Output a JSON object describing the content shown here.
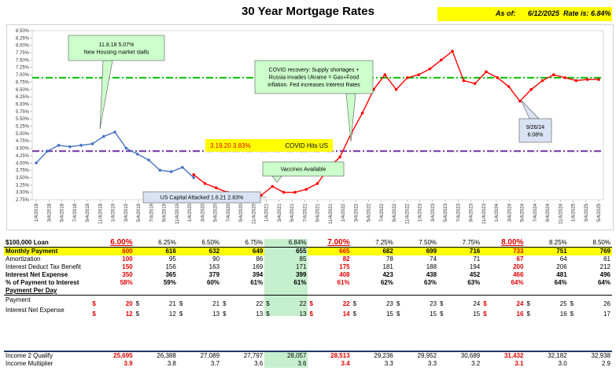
{
  "title": "30 Year Mortgage Rates",
  "asof": {
    "label": "As of:",
    "date": "6/12/2025",
    "rate_label": "Rate is: 6.84%"
  },
  "colors": {
    "blue": "#4472c4",
    "red": "#ff0000",
    "green_line": "#00c000",
    "purple_line": "#7030a0",
    "callout_green": "#ccffcc",
    "callout_blue": "#dae3f3",
    "yellow": "#ffff00",
    "highlight": "#c6efce"
  },
  "chart_data": {
    "type": "line",
    "ylim": [
      2.75,
      8.5
    ],
    "yticks": [
      "8.50%",
      "8.25%",
      "8.00%",
      "7.75%",
      "7.50%",
      "7.25%",
      "7.00%",
      "6.75%",
      "6.50%",
      "6.25%",
      "6.00%",
      "5.75%",
      "5.50%",
      "5.25%",
      "5.00%",
      "4.75%",
      "4.50%",
      "4.25%",
      "4.00%",
      "3.75%",
      "3.50%",
      "3.25%",
      "3.00%",
      "2.75%"
    ],
    "xticks": [
      "1/4/2018",
      "3/4/2018",
      "5/4/2018",
      "7/4/2018",
      "9/4/2018",
      "11/4/2018",
      "1/4/2019",
      "3/4/2019",
      "5/4/2019",
      "7/4/2019",
      "9/4/2019",
      "11/4/2019",
      "1/4/2020",
      "3/4/2020",
      "5/4/2020",
      "7/4/2020",
      "9/4/2020",
      "11/4/2020",
      "1/4/2021",
      "3/4/2021",
      "5/4/2021",
      "7/4/2021",
      "9/4/2021",
      "11/4/2021",
      "1/4/2022",
      "3/4/2022",
      "5/4/2022",
      "7/4/2022",
      "9/4/2022",
      "11/4/2022",
      "1/4/2023",
      "3/4/2023",
      "5/4/2023",
      "7/4/2023",
      "9/4/2023",
      "11/4/2023",
      "1/4/2024",
      "3/4/2024",
      "5/4/2024",
      "7/4/2024",
      "9/4/2024",
      "11/4/2024",
      "1/4/2025",
      "3/4/2025",
      "5/4/2025"
    ],
    "reference_lines": [
      {
        "value": 6.9,
        "color": "#00c000"
      },
      {
        "value": 4.4,
        "color": "#7030a0"
      }
    ],
    "series": [
      {
        "color": "#4472c4",
        "x": [
          0,
          1,
          2,
          3,
          4,
          5,
          6,
          7,
          8,
          9,
          10,
          11,
          12,
          13,
          14
        ],
        "values": [
          4.0,
          4.4,
          4.6,
          4.55,
          4.6,
          4.65,
          4.9,
          5.05,
          4.5,
          4.3,
          4.1,
          3.75,
          3.7,
          3.85,
          3.5
        ]
      },
      {
        "color": "#ff0000",
        "x": [
          14,
          15,
          16,
          17,
          18,
          19,
          20,
          21,
          22,
          23,
          24,
          25,
          26,
          27,
          28,
          29,
          30,
          31,
          32,
          33,
          34,
          35,
          36,
          37,
          38,
          39,
          40,
          41,
          42,
          43,
          44,
          45,
          46,
          47,
          48,
          49,
          50
        ],
        "values": [
          3.6,
          3.3,
          3.15,
          3.0,
          2.9,
          2.83,
          2.9,
          3.2,
          3.0,
          3.0,
          3.1,
          3.3,
          3.83,
          4.2,
          5.0,
          5.7,
          6.5,
          7.0,
          6.5,
          6.9,
          7.0,
          7.2,
          7.5,
          7.8,
          6.8,
          6.7,
          7.1,
          6.9,
          6.6,
          6.1,
          6.5,
          6.8,
          7.0,
          6.9,
          6.8,
          6.84,
          6.84
        ]
      }
    ],
    "annotations": [
      {
        "text_lines": [
          "11.8.18 5.07%",
          "New Housing market stalls"
        ],
        "style": "green"
      },
      {
        "text_lines": [
          "COVID recovery: Supply shortages +",
          "Russia invades Ukraine = Gas+Food",
          "inflation.  Fed increases Interest Rates"
        ],
        "style": "green"
      },
      {
        "text_lines": [
          "9/26/24",
          "6.08%"
        ],
        "style": "blue"
      },
      {
        "text_lines": [
          "US Capital Attacked 1.6.21 2.83%"
        ],
        "style": "blue"
      },
      {
        "text_lines": [
          "Vaccines Available"
        ],
        "style": "green"
      },
      {
        "text_lines": [
          "3.19.20  3.83%",
          "COVID Hits US"
        ],
        "style": "yellow"
      }
    ]
  },
  "table": {
    "loan_label": "$100,000 Loan",
    "rates": [
      "6.00%",
      "6.25%",
      "6.50%",
      "6.75%",
      "6.84%",
      "7.00%",
      "7.25%",
      "7.50%",
      "7.75%",
      "8.00%",
      "8.25%",
      "8.50%"
    ],
    "rows": [
      {
        "label": "Monthly Payment",
        "values": [
          "600",
          "616",
          "632",
          "649",
          "655",
          "665",
          "682",
          "699",
          "716",
          "733",
          "751",
          "769"
        ]
      },
      {
        "label": "Amortization",
        "values": [
          "100",
          "95",
          "90",
          "86",
          "85",
          "82",
          "78",
          "74",
          "71",
          "67",
          "64",
          "61"
        ]
      },
      {
        "label": "Interest Deduct Tax Benefit",
        "values": [
          "150",
          "156",
          "163",
          "169",
          "171",
          "175",
          "181",
          "188",
          "194",
          "200",
          "206",
          "212"
        ]
      },
      {
        "label": "Interest Net Expense",
        "values": [
          "350",
          "365",
          "379",
          "394",
          "399",
          "408",
          "423",
          "438",
          "452",
          "466",
          "481",
          "496"
        ]
      },
      {
        "label": "% of Payment to Interest",
        "values": [
          "58%",
          "59%",
          "60%",
          "61%",
          "61%",
          "61%",
          "62%",
          "63%",
          "63%",
          "64%",
          "64%",
          "64%"
        ]
      }
    ],
    "per_day_label": "Payment Per Day",
    "per_day_rows": [
      {
        "label": "Payment",
        "values": [
          "20",
          "21",
          "21",
          "22",
          "22",
          "22",
          "23",
          "23",
          "24",
          "24",
          "25",
          "26"
        ]
      },
      {
        "label": "Interest Net Expense",
        "values": [
          "12",
          "12",
          "13",
          "13",
          "13",
          "14",
          "15",
          "15",
          "15",
          "16",
          "16",
          "17"
        ]
      }
    ],
    "currency": "$",
    "income_rows": [
      {
        "label": "Income 2 Qualify",
        "values": [
          "25,695",
          "26,388",
          "27,089",
          "27,797",
          "28,057",
          "28,513",
          "29,236",
          "29,952",
          "30,689",
          "31,432",
          "32,182",
          "32,938"
        ]
      },
      {
        "label": "Income Multiplier",
        "values": [
          "3.9",
          "3.8",
          "3.7",
          "3.6",
          "3.6",
          "3.4",
          "3.3",
          "3.3",
          "3.2",
          "3.1",
          "3.0",
          "2.9"
        ]
      }
    ]
  }
}
